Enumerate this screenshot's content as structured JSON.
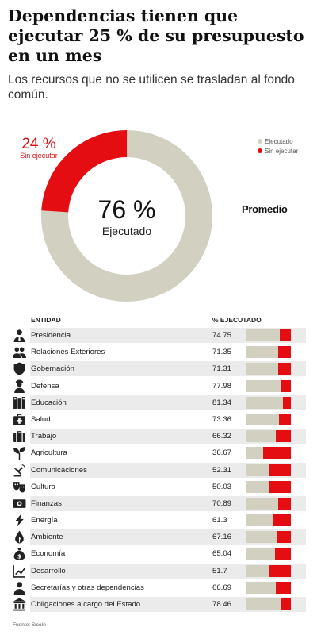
{
  "header": {
    "title": "Dependencias tienen que ejecutar 25 % de su presupuesto en un mes",
    "subtitle": "Los recursos que no se utilicen se trasladan al fondo común."
  },
  "summary": {
    "executed_label": "76 %",
    "executed_caption": "Ejecutado",
    "pending_label": "24 %",
    "pending_caption": "Sin ejecutar",
    "average_label": "Promedio"
  },
  "legend": [
    {
      "label": "Ejecutado",
      "color": "#d2d0c0"
    },
    {
      "label": "Sin ejecutar",
      "color": "#e30d12"
    }
  ],
  "colors": {
    "executed": "#d2d0c0",
    "pending": "#e30d12",
    "row_shade": "#ebebeb"
  },
  "table": {
    "col_entity": "ENTIDAD",
    "col_percent": "% EJECUTADO"
  },
  "chart_data": [
    {
      "type": "pie",
      "donut": true,
      "categories": [
        "Ejecutado",
        "Sin ejecutar"
      ],
      "values": [
        76,
        24
      ],
      "legend": "top-right"
    },
    {
      "type": "bar",
      "orientation": "horizontal",
      "stacked": true,
      "xlim": [
        0,
        100
      ],
      "categories": [
        "Presidencia",
        "Relaciones Exteriores",
        "Gobernación",
        "Defensa",
        "Educación",
        "Salud",
        "Trabajo",
        "Agricultura",
        "Comunicaciones",
        "Cultura",
        "Finanzas",
        "Energía",
        "Ambiente",
        "Economía",
        "Desarrollo",
        "Secretarías y otras dependencias",
        "Obligaciones a cargo del Estado"
      ],
      "labels": [
        "74.75",
        "71.35",
        "71.31",
        "77.98",
        "81.34",
        "73.36",
        "66.32",
        "36.67",
        "52.31",
        "50.03",
        "70.89",
        "61.3",
        "67.16",
        "65.04",
        "51.7",
        "66.69",
        "78.46"
      ],
      "series": [
        {
          "name": "Ejecutado",
          "values": [
            74.75,
            71.35,
            71.31,
            77.98,
            81.34,
            73.36,
            66.32,
            36.67,
            52.31,
            50.03,
            70.89,
            61.3,
            67.16,
            65.04,
            51.7,
            66.69,
            78.46
          ]
        },
        {
          "name": "Sin ejecutar",
          "values": [
            25.25,
            28.65,
            28.69,
            22.02,
            18.66,
            26.64,
            33.68,
            63.33,
            47.69,
            49.97,
            29.11,
            38.7,
            32.84,
            34.96,
            48.3,
            33.31,
            21.54
          ]
        }
      ]
    }
  ],
  "row_icons": [
    "person-suit-icon",
    "people-icon",
    "shield-icon",
    "soldier-icon",
    "books-icon",
    "medical-kit-icon",
    "briefcase-icon",
    "plant-icon",
    "satellite-dish-icon",
    "theater-masks-icon",
    "money-icon",
    "lightning-icon",
    "leaf-drop-icon",
    "money-bag-icon",
    "growth-chart-icon",
    "person-icon",
    "government-building-icon"
  ],
  "footer": {
    "source": "Fuente: Sicoín"
  }
}
